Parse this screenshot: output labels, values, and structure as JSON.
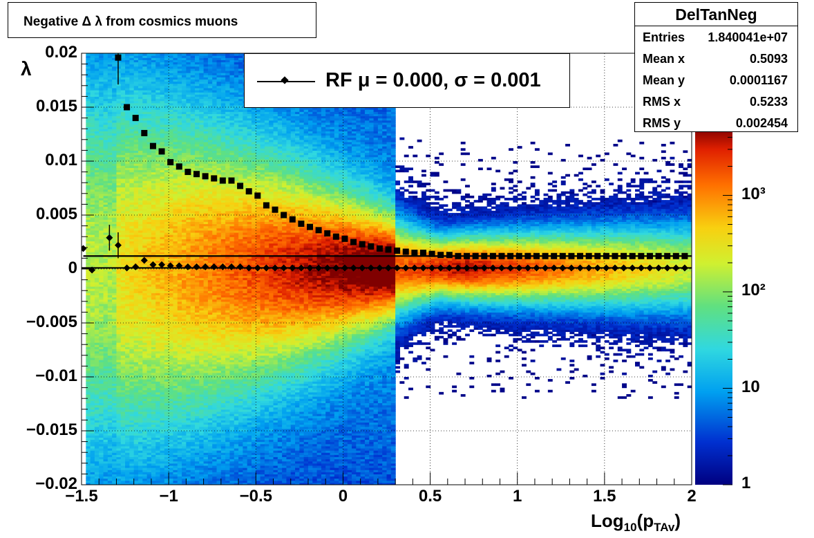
{
  "title": "Negative Δ λ from cosmics muons",
  "stats": {
    "name": "DelTanNeg",
    "rows": [
      {
        "label": "Entries",
        "value": "1.840041e+07"
      },
      {
        "label": "Mean x",
        "value": "0.5093"
      },
      {
        "label": "Mean y",
        "value": "0.0001167"
      },
      {
        "label": "RMS x",
        "value": "0.5233"
      },
      {
        "label": "RMS y",
        "value": "0.002454"
      }
    ]
  },
  "legend": {
    "text": "RF μ =  0.000, σ =   0.001"
  },
  "axes": {
    "x_title": "Log10(pTAv)",
    "y_title": "λ",
    "x_ticks": [
      "−1.5",
      "−1",
      "−0.5",
      "0",
      "0.5",
      "1",
      "1.5",
      "2"
    ],
    "y_ticks": [
      "0.02",
      "0.015",
      "0.01",
      "0.005",
      "0",
      "−0.005",
      "−0.01",
      "−0.015",
      "−0.02"
    ],
    "z_ticks": [
      "1",
      "10",
      "10²",
      "10³"
    ]
  },
  "chart_data": {
    "type": "heatmap",
    "xlim": [
      -1.5,
      2.0
    ],
    "ylim": [
      -0.02,
      0.02
    ],
    "zscale": "log",
    "zlim": [
      1,
      5000
    ],
    "grid": true,
    "series": [
      {
        "name": "RF",
        "marker": "diamond",
        "x": [
          -1.49,
          -1.44,
          -1.34,
          -1.29,
          -1.24,
          -1.19,
          -1.14,
          -1.09,
          -1.04,
          -0.99,
          -0.94,
          -0.89,
          -0.84,
          -0.79,
          -0.74,
          -0.69,
          -0.64,
          -0.59,
          -0.54,
          -0.49,
          -0.44,
          -0.39,
          -0.34,
          -0.29,
          -0.24,
          -0.19,
          -0.14,
          -0.09,
          -0.04,
          0.01,
          0.06,
          0.11,
          0.16,
          0.21,
          0.26,
          0.31,
          0.36,
          0.41,
          0.46,
          0.51,
          0.56,
          0.61,
          0.66,
          0.71,
          0.76,
          0.81,
          0.86,
          0.91,
          0.96,
          1.01,
          1.06,
          1.11,
          1.16,
          1.21,
          1.26,
          1.31,
          1.36,
          1.41,
          1.46,
          1.51,
          1.56,
          1.61,
          1.66,
          1.71,
          1.76,
          1.81,
          1.86,
          1.91,
          1.96
        ],
        "y": [
          0.0019,
          -0.0001,
          0.0029,
          0.0022,
          0.0001,
          0.0002,
          0.0008,
          0.0004,
          0.0004,
          0.0003,
          0.0003,
          0.0002,
          0.0002,
          0.0002,
          0.0002,
          0.0002,
          0.0002,
          0.0002,
          0.0001,
          0.0001,
          0.0001,
          0.0001,
          0.0001,
          0.0001,
          0.0001,
          0.0001,
          0.0001,
          0.0001,
          0.0001,
          0.0001,
          0.0001,
          0.0001,
          0.0001,
          0.0001,
          0.0001,
          0.0001,
          0.0001,
          0.0001,
          0.0001,
          0.0001,
          0.0001,
          0.0001,
          0.0001,
          0.0001,
          0.0001,
          0.0001,
          0.0001,
          0.0001,
          0.0001,
          0.0001,
          0.0001,
          0.0001,
          0.0001,
          0.0001,
          0.0001,
          0.0001,
          0.0001,
          0.0001,
          0.0001,
          0.0001,
          0.0001,
          0.0001,
          0.0001,
          0.0001,
          0.0001,
          0.0001,
          0.0001,
          0.0001,
          0.0001
        ]
      },
      {
        "marker": "square",
        "x": [
          -1.29,
          -1.24,
          -1.19,
          -1.14,
          -1.09,
          -1.04,
          -0.99,
          -0.94,
          -0.89,
          -0.84,
          -0.79,
          -0.74,
          -0.69,
          -0.64,
          -0.59,
          -0.54,
          -0.49,
          -0.44,
          -0.39,
          -0.34,
          -0.29,
          -0.24,
          -0.19,
          -0.14,
          -0.09,
          -0.04,
          0.01,
          0.06,
          0.11,
          0.16,
          0.21,
          0.26,
          0.31,
          0.36,
          0.41,
          0.46,
          0.51,
          0.56,
          0.61,
          0.66,
          0.71,
          0.76,
          0.81,
          0.86,
          0.91,
          0.96,
          1.01,
          1.06,
          1.11,
          1.16,
          1.21,
          1.26,
          1.31,
          1.36,
          1.41,
          1.46,
          1.51,
          1.56,
          1.61,
          1.66,
          1.71,
          1.76,
          1.81,
          1.86,
          1.91,
          1.96
        ],
        "y": [
          0.0196,
          0.015,
          0.014,
          0.0126,
          0.0114,
          0.0109,
          0.0099,
          0.0095,
          0.009,
          0.0088,
          0.0086,
          0.0084,
          0.0082,
          0.0082,
          0.0077,
          0.0072,
          0.0068,
          0.0059,
          0.0055,
          0.005,
          0.0046,
          0.0042,
          0.0039,
          0.0036,
          0.0033,
          0.003,
          0.0028,
          0.0025,
          0.0023,
          0.0021,
          0.0019,
          0.0018,
          0.0017,
          0.0016,
          0.0015,
          0.0015,
          0.0014,
          0.0013,
          0.0013,
          0.0012,
          0.0012,
          0.0012,
          0.0012,
          0.0012,
          0.0012,
          0.0012,
          0.0012,
          0.0012,
          0.0012,
          0.0012,
          0.0012,
          0.0012,
          0.0012,
          0.0012,
          0.0012,
          0.0012,
          0.0012,
          0.0012,
          0.0012,
          0.0012,
          0.0012,
          0.0012,
          0.0012,
          0.0012,
          0.0012,
          0.0012
        ]
      }
    ],
    "reference_lines": [
      {
        "y": 0.0012,
        "x_from": -1.49,
        "x_to": 2.0
      },
      {
        "y": 0.0001,
        "x_from": -1.5,
        "x_to": 2.0
      }
    ]
  }
}
